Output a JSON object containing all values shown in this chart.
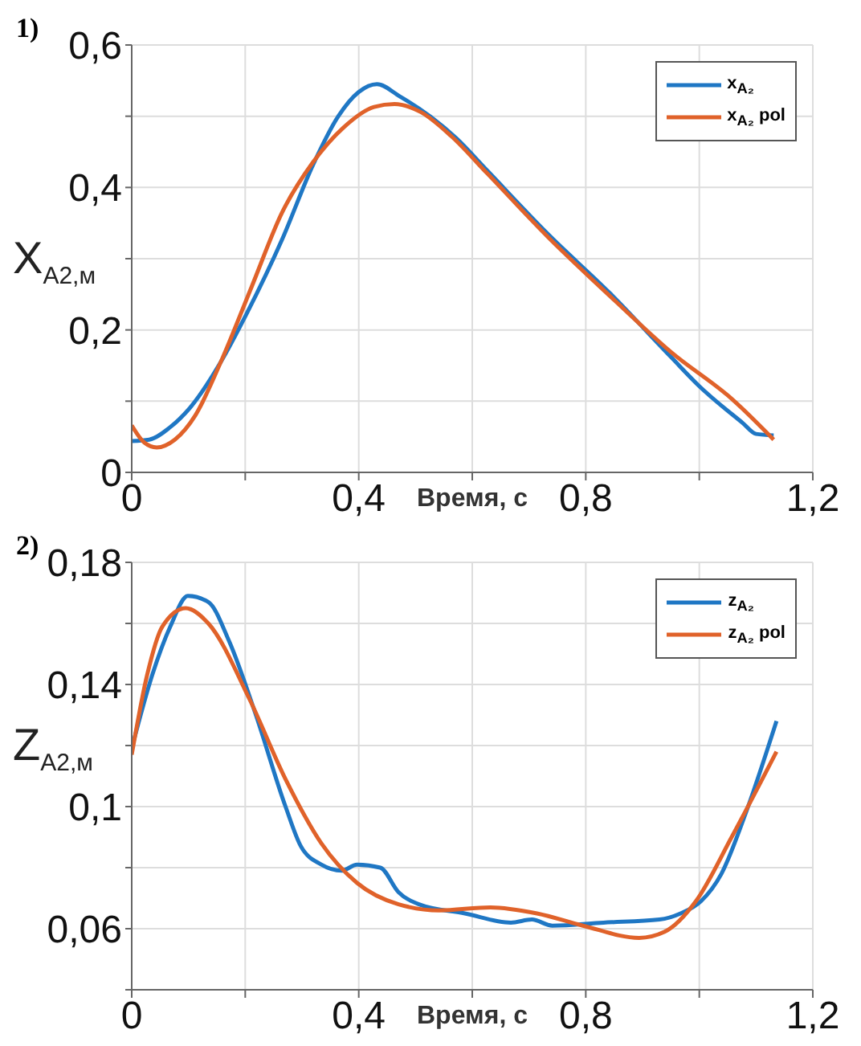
{
  "chart_data": [
    {
      "type": "line",
      "annotations": [
        "1)"
      ],
      "xlabel": "Время, с",
      "ylabel": "X$_{A2,м}$",
      "xlim": [
        0,
        1.2
      ],
      "xticks": [
        {
          "value": 0,
          "label": "0"
        },
        {
          "value": 0.2,
          "label": null
        },
        {
          "value": 0.4,
          "label": "0,4"
        },
        {
          "value": 0.6,
          "label": null
        },
        {
          "value": 0.8,
          "label": "0,8"
        },
        {
          "value": 1,
          "label": null
        },
        {
          "value": 1.2,
          "label": "1,2"
        }
      ],
      "ylim": [
        0,
        0.6
      ],
      "yticks": [
        {
          "value": 0,
          "label": "0"
        },
        {
          "value": 0.1,
          "label": null
        },
        {
          "value": 0.2,
          "label": "0,2"
        },
        {
          "value": 0.3,
          "label": null
        },
        {
          "value": 0.4,
          "label": "0,4"
        },
        {
          "value": 0.5,
          "label": null
        },
        {
          "value": 0.6,
          "label": "0,6"
        }
      ],
      "grid": true,
      "legend": "top right",
      "line_style": "solid",
      "series": [
        {
          "name": "x$_{A₂}$",
          "color": "#1f77c4",
          "x": [
            0,
            0.031,
            0.067,
            0.103,
            0.157,
            0.202,
            0.265,
            0.319,
            0.364,
            0.4,
            0.432,
            0.472,
            0.527,
            0.572,
            0.626,
            0.734,
            0.842,
            0.95,
            1.0,
            1.077,
            1.1,
            1.131
          ],
          "values": [
            0.044,
            0.046,
            0.063,
            0.091,
            0.155,
            0.222,
            0.327,
            0.431,
            0.5,
            0.534,
            0.545,
            0.528,
            0.499,
            0.469,
            0.424,
            0.334,
            0.252,
            0.162,
            0.121,
            0.069,
            0.054,
            0.052
          ]
        },
        {
          "name": "x$_{A₂}$ pol",
          "color": "#e0622a",
          "x": [
            0,
            0.022,
            0.044,
            0.076,
            0.112,
            0.157,
            0.211,
            0.265,
            0.319,
            0.373,
            0.427,
            0.463,
            0.509,
            0.563,
            0.626,
            0.734,
            0.842,
            0.95,
            1.059,
            1.131
          ],
          "values": [
            0.066,
            0.042,
            0.035,
            0.046,
            0.08,
            0.155,
            0.26,
            0.365,
            0.435,
            0.484,
            0.513,
            0.517,
            0.506,
            0.472,
            0.42,
            0.33,
            0.248,
            0.169,
            0.102,
            0.046
          ]
        }
      ]
    },
    {
      "type": "line",
      "annotations": [
        "2)"
      ],
      "xlabel": "Время, с",
      "ylabel": "Z$_{A2,м}$",
      "xlim": [
        0,
        1.2
      ],
      "xticks": [
        {
          "value": 0,
          "label": "0"
        },
        {
          "value": 0.2,
          "label": null
        },
        {
          "value": 0.4,
          "label": "0,4"
        },
        {
          "value": 0.6,
          "label": null
        },
        {
          "value": 0.8,
          "label": "0,8"
        },
        {
          "value": 1,
          "label": null
        },
        {
          "value": 1.2,
          "label": "1,2"
        }
      ],
      "ylim": [
        0.04,
        0.18
      ],
      "yticks": [
        {
          "value": 0.04,
          "label": null
        },
        {
          "value": 0.06,
          "label": "0,06"
        },
        {
          "value": 0.08,
          "label": null
        },
        {
          "value": 0.1,
          "label": "0,1"
        },
        {
          "value": 0.12,
          "label": null
        },
        {
          "value": 0.14,
          "label": "0,14"
        },
        {
          "value": 0.16,
          "label": null
        },
        {
          "value": 0.18,
          "label": "0,18"
        }
      ],
      "grid": true,
      "legend": "top right",
      "line_style": "solid",
      "series": [
        {
          "name": "z$_{A₂}$",
          "color": "#1f77c4",
          "x": [
            0,
            0.036,
            0.068,
            0.099,
            0.135,
            0.172,
            0.217,
            0.271,
            0.298,
            0.334,
            0.37,
            0.397,
            0.438,
            0.47,
            0.506,
            0.587,
            0.668,
            0.705,
            0.741,
            0.831,
            0.93,
            0.967,
            1.003,
            1.039,
            1.084,
            1.136
          ],
          "values": [
            0.119,
            0.143,
            0.159,
            0.169,
            0.167,
            0.154,
            0.131,
            0.1,
            0.087,
            0.081,
            0.079,
            0.081,
            0.08,
            0.072,
            0.068,
            0.065,
            0.062,
            0.063,
            0.061,
            0.062,
            0.063,
            0.065,
            0.069,
            0.078,
            0.099,
            0.128
          ]
        },
        {
          "name": "z$_{A₂}$ pol",
          "color": "#e0622a",
          "x": [
            0,
            0.027,
            0.054,
            0.095,
            0.135,
            0.208,
            0.271,
            0.334,
            0.397,
            0.47,
            0.542,
            0.632,
            0.714,
            0.795,
            0.894,
            0.939,
            0.994,
            1.057,
            1.136
          ],
          "values": [
            0.117,
            0.143,
            0.159,
            0.165,
            0.16,
            0.135,
            0.109,
            0.088,
            0.075,
            0.068,
            0.066,
            0.067,
            0.065,
            0.061,
            0.057,
            0.059,
            0.069,
            0.09,
            0.118
          ]
        }
      ]
    }
  ]
}
